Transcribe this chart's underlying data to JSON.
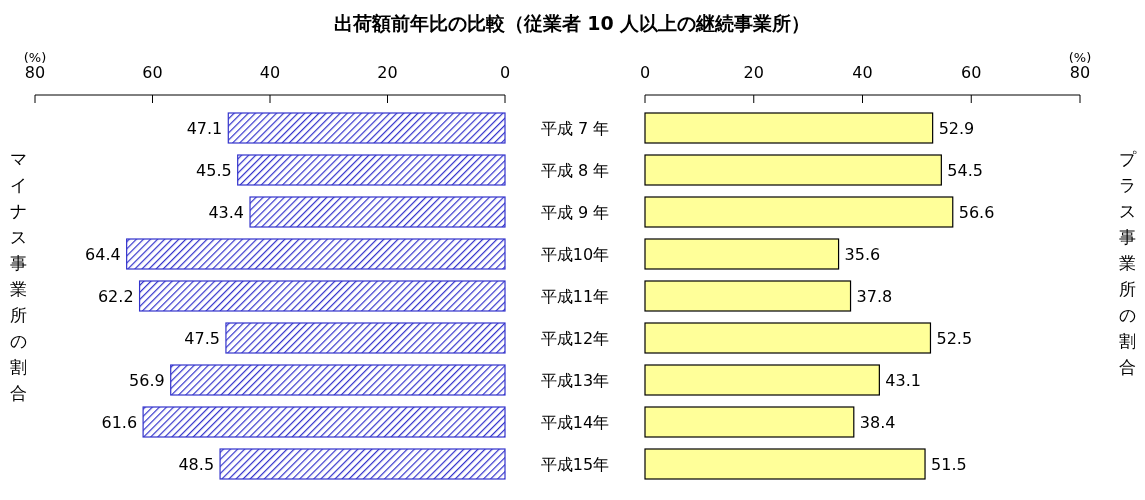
{
  "chart_data": [
    {
      "type": "bar",
      "orientation": "horizontal",
      "title": "出荷額前年比の比較（従業者 10 人以上の継続事業所）",
      "xlabel": "(%)",
      "ylabel": "マイナス事業所の割合",
      "categories": [
        "平成 7 年",
        "平成 8 年",
        "平成 9 年",
        "平成10年",
        "平成11年",
        "平成12年",
        "平成13年",
        "平成14年",
        "平成15年"
      ],
      "values": [
        47.1,
        45.5,
        43.4,
        64.4,
        62.2,
        47.5,
        56.9,
        61.6,
        48.5
      ],
      "color": "#3333cc",
      "xlim": [
        80,
        0
      ],
      "xticks": [
        80,
        60,
        40,
        20,
        0
      ],
      "data_labels": true
    },
    {
      "type": "bar",
      "orientation": "horizontal",
      "xlabel": "(%)",
      "ylabel": "プラス事業所の割合",
      "values": [
        52.9,
        54.5,
        56.6,
        35.6,
        37.8,
        52.5,
        43.1,
        38.4,
        51.5
      ],
      "color": "#ffff99",
      "xlim": [
        0,
        80
      ],
      "xticks": [
        0,
        20,
        40,
        60,
        80
      ],
      "data_labels": true
    }
  ]
}
